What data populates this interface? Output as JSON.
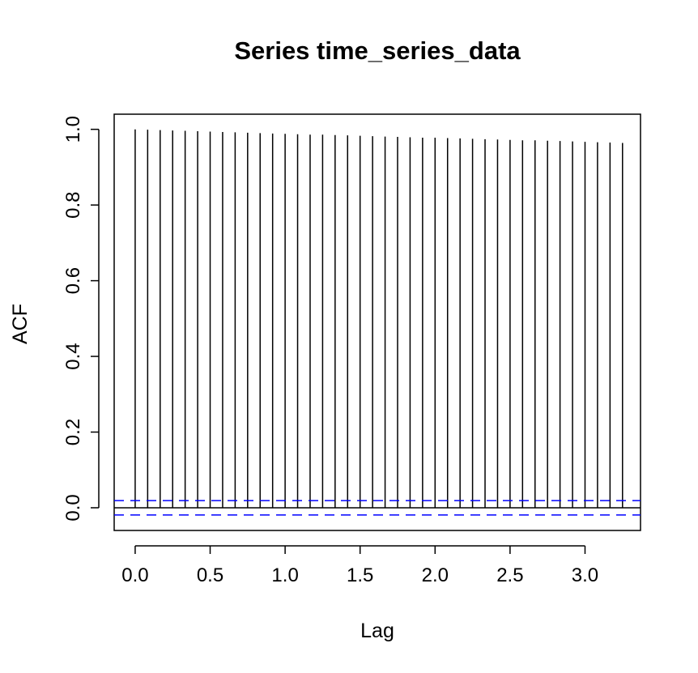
{
  "chart_data": {
    "type": "bar",
    "title": "Series  time_series_data",
    "xlabel": "Lag",
    "ylabel": "ACF",
    "xlim": [
      -0.14,
      3.37
    ],
    "ylim": [
      -0.06,
      1.04
    ],
    "x_ticks": [
      0.0,
      0.5,
      1.0,
      1.5,
      2.0,
      2.5,
      3.0
    ],
    "x_tick_labels": [
      "0.0",
      "0.5",
      "1.0",
      "1.5",
      "2.0",
      "2.5",
      "3.0"
    ],
    "y_ticks": [
      0.0,
      0.2,
      0.4,
      0.6,
      0.8,
      1.0
    ],
    "y_tick_labels": [
      "0.0",
      "0.2",
      "0.4",
      "0.6",
      "0.8",
      "1.0"
    ],
    "grid": false,
    "lags": [
      0.0,
      0.0833,
      0.1667,
      0.25,
      0.3333,
      0.4167,
      0.5,
      0.5833,
      0.6667,
      0.75,
      0.8333,
      0.9167,
      1.0,
      1.0833,
      1.1667,
      1.25,
      1.3333,
      1.4167,
      1.5,
      1.5833,
      1.6667,
      1.75,
      1.8333,
      1.9167,
      2.0,
      2.0833,
      2.1667,
      2.25,
      2.3333,
      2.4167,
      2.5,
      2.5833,
      2.6667,
      2.75,
      2.8333,
      2.9167,
      3.0,
      3.0833,
      3.1667,
      3.25
    ],
    "acf": [
      1.0,
      0.999,
      0.998,
      0.997,
      0.996,
      0.995,
      0.994,
      0.993,
      0.992,
      0.991,
      0.99,
      0.989,
      0.988,
      0.987,
      0.986,
      0.986,
      0.985,
      0.984,
      0.983,
      0.982,
      0.981,
      0.98,
      0.979,
      0.978,
      0.978,
      0.977,
      0.976,
      0.975,
      0.974,
      0.973,
      0.972,
      0.971,
      0.971,
      0.97,
      0.969,
      0.968,
      0.967,
      0.966,
      0.965,
      0.964
    ],
    "confidence_bound": 0.019,
    "colors": {
      "bars": "#000000",
      "confidence": "#0000ff",
      "zero_line": "#000000",
      "axes": "#000000"
    }
  }
}
